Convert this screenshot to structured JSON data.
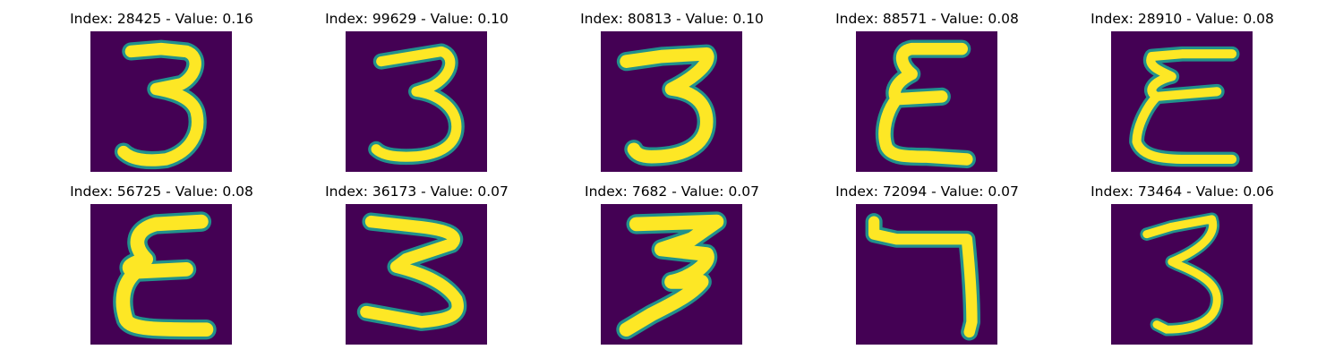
{
  "figure": {
    "colors": {
      "background": "#440154",
      "edge": "#21918c",
      "stroke": "#fde725"
    },
    "panels": [
      {
        "title": "Index: 28425 - Value: 0.16",
        "image": "digit-3-image"
      },
      {
        "title": "Index: 99629 - Value: 0.10",
        "image": "digit-3-image"
      },
      {
        "title": "Index: 80813 - Value: 0.10",
        "image": "digit-3-image"
      },
      {
        "title": "Index: 88571 - Value: 0.08",
        "image": "epsilon-shape-image"
      },
      {
        "title": "Index: 28910 - Value: 0.08",
        "image": "epsilon-shape-image"
      },
      {
        "title": "Index: 56725 - Value: 0.08",
        "image": "epsilon-shape-image"
      },
      {
        "title": "Index: 36173 - Value: 0.07",
        "image": "digit-3-image"
      },
      {
        "title": "Index: 7682 - Value: 0.07",
        "image": "digit-3-image"
      },
      {
        "title": "Index: 72094 - Value: 0.07",
        "image": "digit-7-image"
      },
      {
        "title": "Index: 73464 - Value: 0.06",
        "image": "digit-3-image"
      }
    ]
  }
}
